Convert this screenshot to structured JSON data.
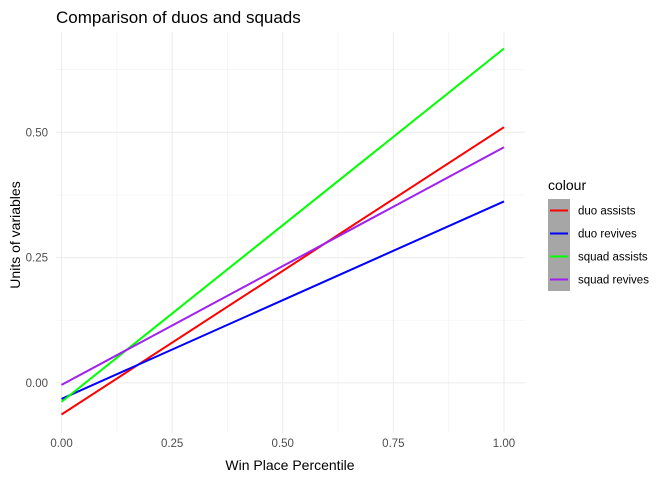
{
  "chart_data": {
    "type": "line",
    "title": "Comparison of duos and squads",
    "xlabel": "Win Place Percentile",
    "ylabel": "Units of variables",
    "xlim": [
      -0.0125,
      1.0475
    ],
    "ylim": [
      -0.1,
      0.7
    ],
    "x_ticks": [
      0.0,
      0.25,
      0.5,
      0.75,
      1.0
    ],
    "x_tick_labels": [
      "0.00",
      "0.25",
      "0.50",
      "0.75",
      "1.00"
    ],
    "y_ticks": [
      0.0,
      0.25,
      0.5
    ],
    "y_tick_labels": [
      "0.00",
      "0.25",
      "0.50"
    ],
    "grid": true,
    "legend": {
      "title": "colour",
      "position": "right",
      "key_background": "#a6a6a6"
    },
    "series": [
      {
        "name": "duo assists",
        "color": "#ff0000",
        "x": [
          0,
          1
        ],
        "y": [
          -0.063,
          0.51
        ]
      },
      {
        "name": "duo revives",
        "color": "#0000ff",
        "x": [
          0,
          1
        ],
        "y": [
          -0.032,
          0.362
        ]
      },
      {
        "name": "squad assists",
        "color": "#00ff00",
        "x": [
          0,
          1
        ],
        "y": [
          -0.038,
          0.667
        ]
      },
      {
        "name": "squad revives",
        "color": "#a020f0",
        "x": [
          0,
          1
        ],
        "y": [
          -0.004,
          0.47
        ]
      }
    ]
  }
}
